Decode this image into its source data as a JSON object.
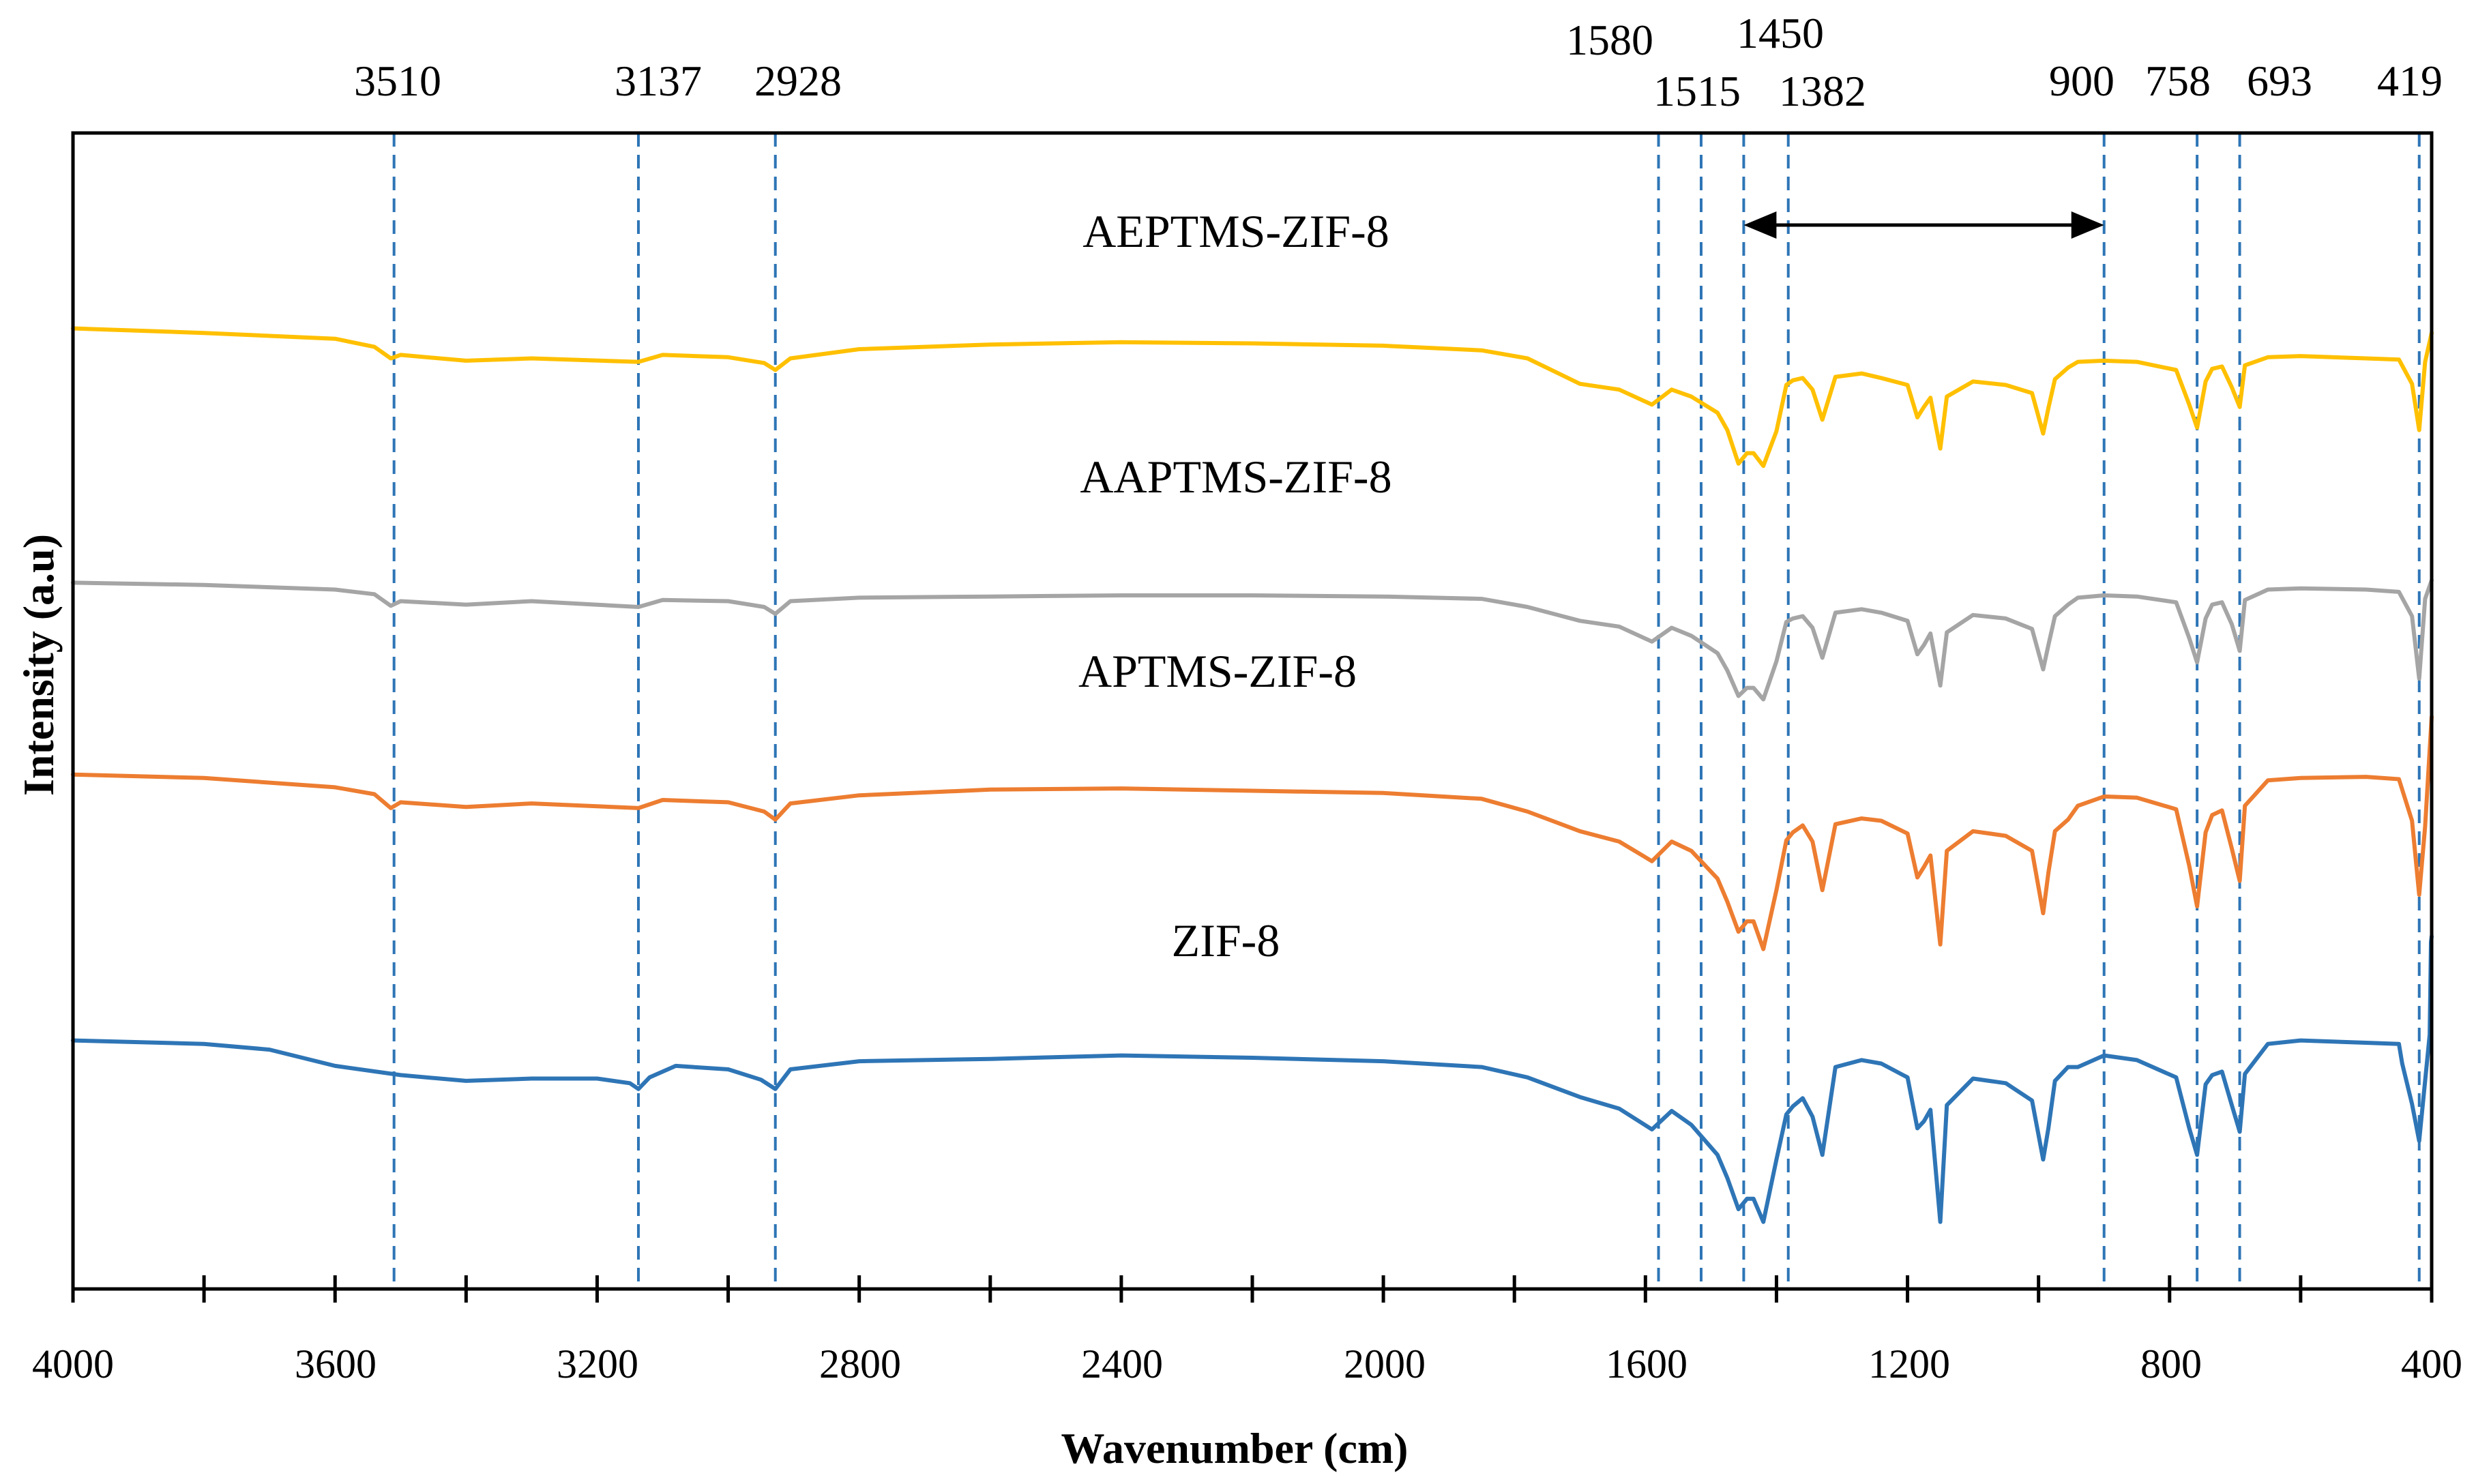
{
  "chart_data": {
    "type": "line",
    "title": "",
    "xlabel": "Wavenumber (cm)",
    "ylabel": "Intensity (a.u)",
    "xlim": [
      4000,
      400
    ],
    "x_reversed": true,
    "x_ticks": [
      4000,
      3600,
      3200,
      2800,
      2400,
      2000,
      1600,
      1200,
      800,
      400
    ],
    "x_tick_labels": [
      "4000",
      "3600",
      "3200",
      "2800",
      "2400",
      "2000",
      "1600",
      "1200",
      "800",
      "400"
    ],
    "x_minor_step": 200,
    "ylim": [
      0,
      100
    ],
    "y_ticks_shown": false,
    "grid": false,
    "legend": "none",
    "series_label_texts": {
      "aeptms": "AEPTMS-ZIF-8",
      "aaptms": "AAPTMS-ZIF-8",
      "aptms": "APTMS-ZIF-8",
      "zif8": "ZIF-8"
    },
    "series": [
      {
        "name": "AEPTMS-ZIF-8",
        "color": "#FFC000",
        "points": [
          [
            4000,
            83.1
          ],
          [
            3800,
            82.7
          ],
          [
            3600,
            82.2
          ],
          [
            3540,
            81.5
          ],
          [
            3515,
            80.5
          ],
          [
            3500,
            80.8
          ],
          [
            3400,
            80.3
          ],
          [
            3300,
            80.5
          ],
          [
            3137,
            80.2
          ],
          [
            3100,
            80.8
          ],
          [
            3000,
            80.6
          ],
          [
            2945,
            80.1
          ],
          [
            2928,
            79.5
          ],
          [
            2905,
            80.5
          ],
          [
            2800,
            81.3
          ],
          [
            2600,
            81.7
          ],
          [
            2400,
            81.9
          ],
          [
            2200,
            81.8
          ],
          [
            2000,
            81.6
          ],
          [
            1850,
            81.2
          ],
          [
            1780,
            80.5
          ],
          [
            1700,
            78.3
          ],
          [
            1640,
            77.8
          ],
          [
            1590,
            76.5
          ],
          [
            1560,
            77.8
          ],
          [
            1530,
            77.2
          ],
          [
            1490,
            75.8
          ],
          [
            1475,
            74.3
          ],
          [
            1458,
            71.4
          ],
          [
            1445,
            72.3
          ],
          [
            1435,
            72.3
          ],
          [
            1420,
            71.2
          ],
          [
            1400,
            74.2
          ],
          [
            1385,
            78.2
          ],
          [
            1375,
            78.6
          ],
          [
            1360,
            78.8
          ],
          [
            1345,
            77.8
          ],
          [
            1330,
            75.2
          ],
          [
            1310,
            78.9
          ],
          [
            1270,
            79.2
          ],
          [
            1240,
            78.8
          ],
          [
            1200,
            78.2
          ],
          [
            1185,
            75.4
          ],
          [
            1175,
            76.3
          ],
          [
            1165,
            77.1
          ],
          [
            1150,
            72.7
          ],
          [
            1140,
            77.2
          ],
          [
            1100,
            78.5
          ],
          [
            1050,
            78.2
          ],
          [
            1010,
            77.5
          ],
          [
            993,
            74.0
          ],
          [
            985,
            76.2
          ],
          [
            975,
            78.7
          ],
          [
            955,
            79.7
          ],
          [
            940,
            80.2
          ],
          [
            900,
            80.3
          ],
          [
            850,
            80.2
          ],
          [
            790,
            79.5
          ],
          [
            770,
            76.5
          ],
          [
            758,
            74.5
          ],
          [
            745,
            78.5
          ],
          [
            735,
            79.6
          ],
          [
            720,
            79.8
          ],
          [
            705,
            78.0
          ],
          [
            693,
            76.3
          ],
          [
            685,
            79.9
          ],
          [
            650,
            80.6
          ],
          [
            600,
            80.7
          ],
          [
            500,
            80.5
          ],
          [
            450,
            80.4
          ],
          [
            430,
            78.3
          ],
          [
            419,
            74.3
          ],
          [
            410,
            80.2
          ],
          [
            400,
            82.7
          ]
        ]
      },
      {
        "name": "AAPTMS-ZIF-8",
        "color": "#A5A5A5",
        "points": [
          [
            4000,
            61.1
          ],
          [
            3800,
            60.9
          ],
          [
            3600,
            60.5
          ],
          [
            3540,
            60.1
          ],
          [
            3515,
            59.1
          ],
          [
            3500,
            59.5
          ],
          [
            3400,
            59.2
          ],
          [
            3300,
            59.5
          ],
          [
            3137,
            59.0
          ],
          [
            3100,
            59.6
          ],
          [
            3000,
            59.5
          ],
          [
            2945,
            59.0
          ],
          [
            2928,
            58.4
          ],
          [
            2905,
            59.5
          ],
          [
            2800,
            59.8
          ],
          [
            2600,
            59.9
          ],
          [
            2400,
            60.0
          ],
          [
            2200,
            60.0
          ],
          [
            2000,
            59.9
          ],
          [
            1850,
            59.7
          ],
          [
            1780,
            59.0
          ],
          [
            1700,
            57.8
          ],
          [
            1640,
            57.3
          ],
          [
            1590,
            56.0
          ],
          [
            1560,
            57.2
          ],
          [
            1530,
            56.5
          ],
          [
            1490,
            55.0
          ],
          [
            1475,
            53.5
          ],
          [
            1458,
            51.3
          ],
          [
            1445,
            52.0
          ],
          [
            1435,
            52.0
          ],
          [
            1420,
            51.0
          ],
          [
            1400,
            54.3
          ],
          [
            1385,
            57.7
          ],
          [
            1375,
            58.0
          ],
          [
            1360,
            58.2
          ],
          [
            1345,
            57.2
          ],
          [
            1330,
            54.6
          ],
          [
            1310,
            58.5
          ],
          [
            1270,
            58.8
          ],
          [
            1240,
            58.5
          ],
          [
            1200,
            57.8
          ],
          [
            1185,
            54.9
          ],
          [
            1175,
            55.7
          ],
          [
            1165,
            56.7
          ],
          [
            1150,
            52.2
          ],
          [
            1140,
            56.8
          ],
          [
            1100,
            58.3
          ],
          [
            1050,
            58.0
          ],
          [
            1010,
            57.1
          ],
          [
            993,
            53.6
          ],
          [
            985,
            55.7
          ],
          [
            975,
            58.2
          ],
          [
            955,
            59.2
          ],
          [
            940,
            59.8
          ],
          [
            900,
            60.0
          ],
          [
            850,
            59.9
          ],
          [
            790,
            59.4
          ],
          [
            770,
            56.3
          ],
          [
            758,
            54.2
          ],
          [
            745,
            58.0
          ],
          [
            735,
            59.2
          ],
          [
            720,
            59.4
          ],
          [
            705,
            57.5
          ],
          [
            693,
            55.2
          ],
          [
            685,
            59.6
          ],
          [
            650,
            60.5
          ],
          [
            600,
            60.6
          ],
          [
            500,
            60.5
          ],
          [
            450,
            60.3
          ],
          [
            430,
            58.2
          ],
          [
            419,
            52.8
          ],
          [
            410,
            59.7
          ],
          [
            400,
            61.3
          ]
        ]
      },
      {
        "name": "APTMS-ZIF-8",
        "color": "#ED7D31",
        "points": [
          [
            4000,
            44.5
          ],
          [
            3800,
            44.2
          ],
          [
            3600,
            43.4
          ],
          [
            3540,
            42.8
          ],
          [
            3515,
            41.6
          ],
          [
            3500,
            42.1
          ],
          [
            3400,
            41.7
          ],
          [
            3300,
            42.0
          ],
          [
            3137,
            41.6
          ],
          [
            3100,
            42.3
          ],
          [
            3000,
            42.1
          ],
          [
            2945,
            41.3
          ],
          [
            2928,
            40.6
          ],
          [
            2905,
            42.0
          ],
          [
            2800,
            42.7
          ],
          [
            2600,
            43.2
          ],
          [
            2400,
            43.3
          ],
          [
            2200,
            43.1
          ],
          [
            2000,
            42.9
          ],
          [
            1850,
            42.4
          ],
          [
            1780,
            41.3
          ],
          [
            1700,
            39.6
          ],
          [
            1640,
            38.7
          ],
          [
            1590,
            37.0
          ],
          [
            1560,
            38.7
          ],
          [
            1530,
            37.9
          ],
          [
            1490,
            35.5
          ],
          [
            1475,
            33.5
          ],
          [
            1458,
            30.9
          ],
          [
            1445,
            31.8
          ],
          [
            1435,
            31.8
          ],
          [
            1420,
            29.4
          ],
          [
            1400,
            34.5
          ],
          [
            1385,
            38.8
          ],
          [
            1375,
            39.5
          ],
          [
            1360,
            40.1
          ],
          [
            1345,
            38.7
          ],
          [
            1330,
            34.5
          ],
          [
            1310,
            40.2
          ],
          [
            1270,
            40.7
          ],
          [
            1240,
            40.5
          ],
          [
            1200,
            39.4
          ],
          [
            1185,
            35.6
          ],
          [
            1175,
            36.5
          ],
          [
            1165,
            37.5
          ],
          [
            1150,
            29.8
          ],
          [
            1140,
            37.9
          ],
          [
            1100,
            39.6
          ],
          [
            1050,
            39.2
          ],
          [
            1010,
            37.9
          ],
          [
            993,
            32.5
          ],
          [
            985,
            36.0
          ],
          [
            975,
            39.6
          ],
          [
            955,
            40.6
          ],
          [
            940,
            41.8
          ],
          [
            900,
            42.6
          ],
          [
            850,
            42.5
          ],
          [
            790,
            41.5
          ],
          [
            770,
            36.6
          ],
          [
            758,
            33.1
          ],
          [
            745,
            39.5
          ],
          [
            735,
            41.0
          ],
          [
            720,
            41.4
          ],
          [
            705,
            38.1
          ],
          [
            693,
            35.3
          ],
          [
            685,
            41.8
          ],
          [
            650,
            44.0
          ],
          [
            600,
            44.2
          ],
          [
            500,
            44.3
          ],
          [
            450,
            44.1
          ],
          [
            430,
            40.5
          ],
          [
            419,
            34.1
          ],
          [
            410,
            40.0
          ],
          [
            400,
            49.5
          ]
        ]
      },
      {
        "name": "ZIF-8",
        "color": "#2E75B6",
        "points": [
          [
            4000,
            21.5
          ],
          [
            3800,
            21.2
          ],
          [
            3700,
            20.7
          ],
          [
            3600,
            19.3
          ],
          [
            3500,
            18.5
          ],
          [
            3400,
            18.0
          ],
          [
            3300,
            18.2
          ],
          [
            3200,
            18.2
          ],
          [
            3150,
            17.8
          ],
          [
            3137,
            17.3
          ],
          [
            3120,
            18.3
          ],
          [
            3080,
            19.3
          ],
          [
            3000,
            19.0
          ],
          [
            2950,
            18.1
          ],
          [
            2928,
            17.3
          ],
          [
            2905,
            19.0
          ],
          [
            2800,
            19.7
          ],
          [
            2600,
            19.9
          ],
          [
            2400,
            20.2
          ],
          [
            2200,
            20.0
          ],
          [
            2000,
            19.7
          ],
          [
            1850,
            19.2
          ],
          [
            1780,
            18.3
          ],
          [
            1700,
            16.6
          ],
          [
            1640,
            15.6
          ],
          [
            1590,
            13.8
          ],
          [
            1560,
            15.4
          ],
          [
            1530,
            14.2
          ],
          [
            1490,
            11.6
          ],
          [
            1475,
            9.6
          ],
          [
            1458,
            6.9
          ],
          [
            1445,
            7.8
          ],
          [
            1435,
            7.8
          ],
          [
            1420,
            5.8
          ],
          [
            1400,
            11.2
          ],
          [
            1385,
            15.1
          ],
          [
            1375,
            15.8
          ],
          [
            1360,
            16.5
          ],
          [
            1345,
            14.9
          ],
          [
            1330,
            11.6
          ],
          [
            1310,
            19.2
          ],
          [
            1270,
            19.8
          ],
          [
            1240,
            19.5
          ],
          [
            1200,
            18.3
          ],
          [
            1185,
            13.9
          ],
          [
            1175,
            14.5
          ],
          [
            1165,
            15.5
          ],
          [
            1150,
            5.8
          ],
          [
            1140,
            15.9
          ],
          [
            1100,
            18.2
          ],
          [
            1050,
            17.8
          ],
          [
            1010,
            16.3
          ],
          [
            993,
            11.2
          ],
          [
            985,
            13.9
          ],
          [
            975,
            18.0
          ],
          [
            955,
            19.2
          ],
          [
            940,
            19.2
          ],
          [
            900,
            20.2
          ],
          [
            850,
            19.8
          ],
          [
            790,
            18.3
          ],
          [
            770,
            13.9
          ],
          [
            758,
            11.6
          ],
          [
            745,
            17.7
          ],
          [
            735,
            18.5
          ],
          [
            720,
            18.8
          ],
          [
            705,
            15.9
          ],
          [
            693,
            13.6
          ],
          [
            685,
            18.6
          ],
          [
            650,
            21.2
          ],
          [
            600,
            21.5
          ],
          [
            500,
            21.3
          ],
          [
            450,
            21.2
          ],
          [
            445,
            19.5
          ],
          [
            430,
            16.0
          ],
          [
            419,
            12.8
          ],
          [
            410,
            18.0
          ],
          [
            403,
            22.0
          ],
          [
            401,
            30.0
          ],
          [
            400,
            30.5
          ]
        ]
      }
    ],
    "reference_lines": [
      3510,
      3137,
      2928,
      1580,
      1515,
      1450,
      1382,
      900,
      758,
      693,
      419
    ],
    "reference_labels": [
      "3510",
      "3137",
      "2928",
      "1580",
      "1515",
      "1450",
      "1382",
      "900",
      "758",
      "693",
      "419"
    ],
    "range_arrow": [
      1450,
      900
    ]
  }
}
